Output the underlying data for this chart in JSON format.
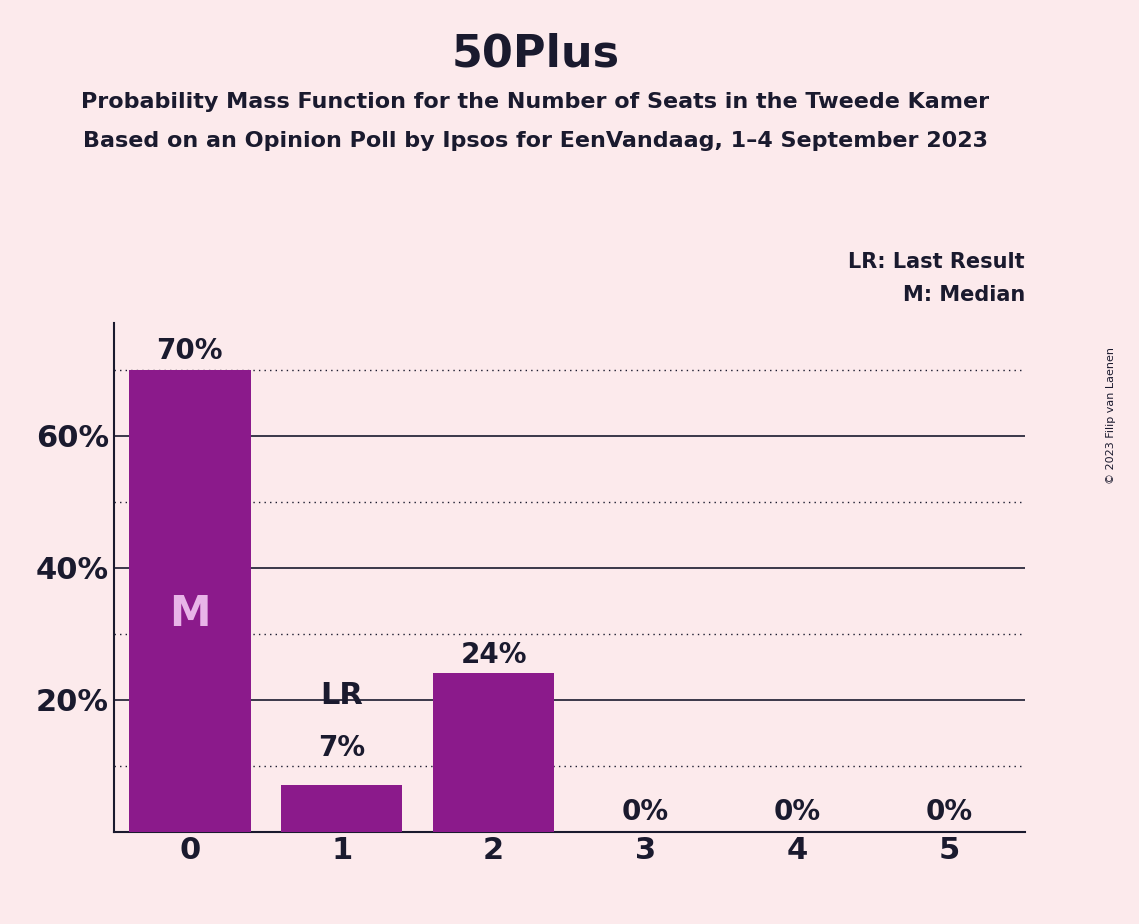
{
  "title": "50Plus",
  "subtitle1": "Probability Mass Function for the Number of Seats in the Tweede Kamer",
  "subtitle2": "Based on an Opinion Poll by Ipsos for EenVandaag, 1–4 September 2023",
  "copyright": "© 2023 Filip van Laenen",
  "categories": [
    0,
    1,
    2,
    3,
    4,
    5
  ],
  "values": [
    0.7,
    0.07,
    0.24,
    0.0,
    0.0,
    0.0
  ],
  "bar_color": "#8B1A8B",
  "background_color": "#FCEAEC",
  "median_bar": 0,
  "lr_bar": 1,
  "bar_labels": [
    "70%",
    "7%",
    "24%",
    "0%",
    "0%",
    "0%"
  ],
  "median_label": "M",
  "lr_label": "LR",
  "ylim": [
    0,
    0.77
  ],
  "solid_gridlines": [
    0.2,
    0.4,
    0.6
  ],
  "dotted_gridlines": [
    0.1,
    0.3,
    0.5,
    0.7
  ],
  "legend_lr": "LR: Last Result",
  "legend_m": "M: Median",
  "title_fontsize": 32,
  "subtitle_fontsize": 16,
  "axis_tick_fontsize": 22,
  "bar_label_fontsize": 20,
  "M_fontsize": 30,
  "LR_fontsize": 22,
  "text_color": "#1a1a2e"
}
